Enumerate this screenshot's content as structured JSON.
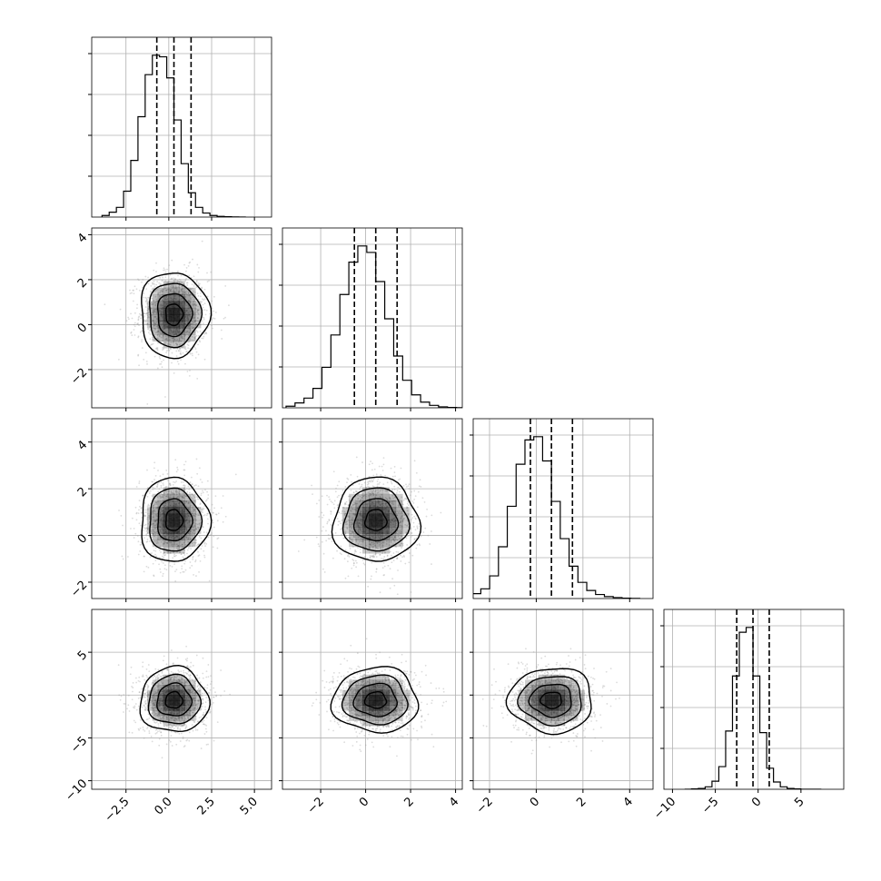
{
  "chart_data": {
    "type": "corner",
    "n_params": 4,
    "colors": {
      "line": "#000000",
      "grid": "#b0b0b0",
      "points": "#9a9a9a",
      "density": "#000000"
    },
    "params": [
      {
        "range": [
          -4.5,
          6.0
        ],
        "ticks": [
          -2.5,
          0.0,
          2.5,
          5.0
        ],
        "tick_labels": [
          "−2.5",
          "0.0",
          "2.5",
          "5.0"
        ],
        "mean": 0.3,
        "sd": 1.0,
        "quantiles": [
          -0.7,
          0.3,
          1.3
        ]
      },
      {
        "range": [
          -3.7,
          4.3
        ],
        "ticks": [
          -2,
          0,
          2,
          4
        ],
        "tick_labels": [
          "−2",
          "0",
          "2",
          "4"
        ],
        "mean": 0.45,
        "sd": 0.95,
        "quantiles": [
          -0.5,
          0.45,
          1.4
        ]
      },
      {
        "range": [
          -2.7,
          5.0
        ],
        "ticks": [
          -2,
          0,
          2,
          4
        ],
        "tick_labels": [
          "−2",
          "0",
          "2",
          "4"
        ],
        "mean": 0.65,
        "sd": 0.9,
        "quantiles": [
          -0.25,
          0.65,
          1.55
        ]
      },
      {
        "range": [
          -11.0,
          10.0
        ],
        "ticks": [
          -10,
          -5,
          0,
          5
        ],
        "tick_labels": [
          "−10",
          "−5",
          "0",
          "5"
        ],
        "mean": -0.6,
        "sd": 1.9,
        "quantiles": [
          -2.5,
          -0.6,
          1.3
        ]
      }
    ],
    "histograms": [
      {
        "param": 0,
        "bins": 20,
        "counts": [
          0.01,
          0.03,
          0.06,
          0.16,
          0.35,
          0.62,
          0.88,
          1.0,
          0.99,
          0.86,
          0.6,
          0.33,
          0.15,
          0.06,
          0.025,
          0.01,
          0.004,
          0.002,
          0.001,
          0.0
        ]
      },
      {
        "param": 1,
        "bins": 20,
        "counts": [
          0.01,
          0.03,
          0.06,
          0.12,
          0.25,
          0.45,
          0.7,
          0.9,
          1.0,
          0.96,
          0.78,
          0.55,
          0.32,
          0.17,
          0.08,
          0.035,
          0.015,
          0.006,
          0.002,
          0.001
        ]
      },
      {
        "param": 2,
        "bins": 20,
        "counts": [
          0.01,
          0.03,
          0.06,
          0.14,
          0.32,
          0.57,
          0.83,
          0.98,
          1.0,
          0.85,
          0.6,
          0.37,
          0.2,
          0.1,
          0.05,
          0.025,
          0.012,
          0.006,
          0.002,
          0.001
        ]
      },
      {
        "param": 3,
        "bins": 20,
        "counts": [
          0.0,
          0.002,
          0.005,
          0.015,
          0.05,
          0.14,
          0.36,
          0.7,
          0.97,
          1.0,
          0.7,
          0.35,
          0.13,
          0.045,
          0.015,
          0.005,
          0.002,
          0.0,
          0.0,
          0.0
        ]
      }
    ],
    "pairs": [
      {
        "row": 1,
        "col": 0
      },
      {
        "row": 2,
        "col": 0
      },
      {
        "row": 2,
        "col": 1
      },
      {
        "row": 3,
        "col": 0
      },
      {
        "row": 3,
        "col": 1
      },
      {
        "row": 3,
        "col": 2
      }
    ],
    "contour_levels_sigma": [
      0.5,
      1.0,
      1.5,
      2.0
    ],
    "xlabel": "",
    "ylabel": "",
    "title": "",
    "grid": true
  }
}
